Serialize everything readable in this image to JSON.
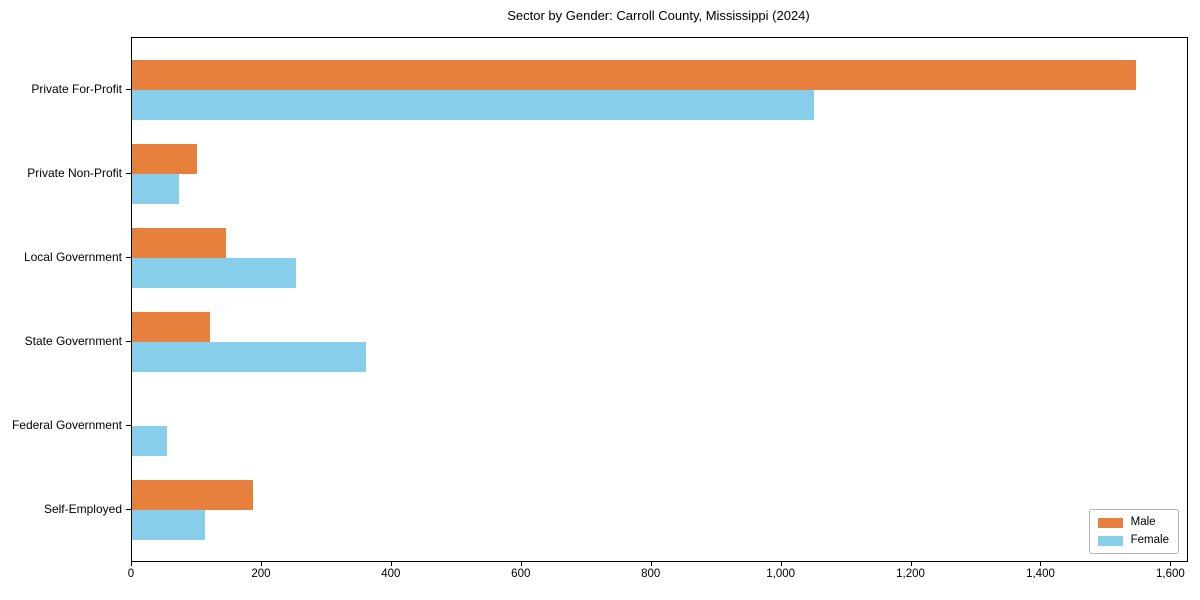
{
  "chart_data": {
    "type": "bar",
    "orientation": "horizontal",
    "title": "Sector by Gender: Carroll County, Mississippi (2024)",
    "categories": [
      "Private For-Profit",
      "Private Non-Profit",
      "Local Government",
      "State Government",
      "Federal Government",
      "Self-Employed"
    ],
    "series": [
      {
        "name": "Male",
        "color": "#E8803D",
        "values": [
          1546,
          100,
          144,
          120,
          0,
          187
        ]
      },
      {
        "name": "Female",
        "color": "#87CEEB",
        "values": [
          1050,
          73,
          253,
          360,
          54,
          113
        ]
      }
    ],
    "xlabel": "",
    "ylabel": "",
    "xlim": [
      0,
      1624
    ],
    "x_ticks": [
      0,
      200,
      400,
      600,
      800,
      1000,
      1200,
      1400,
      1600
    ],
    "x_tick_labels": [
      "0",
      "200",
      "400",
      "600",
      "800",
      "1,000",
      "1,200",
      "1,400",
      "1,600"
    ],
    "grid": false,
    "legend": {
      "position": "lower right",
      "entries": [
        "Male",
        "Female"
      ]
    }
  }
}
